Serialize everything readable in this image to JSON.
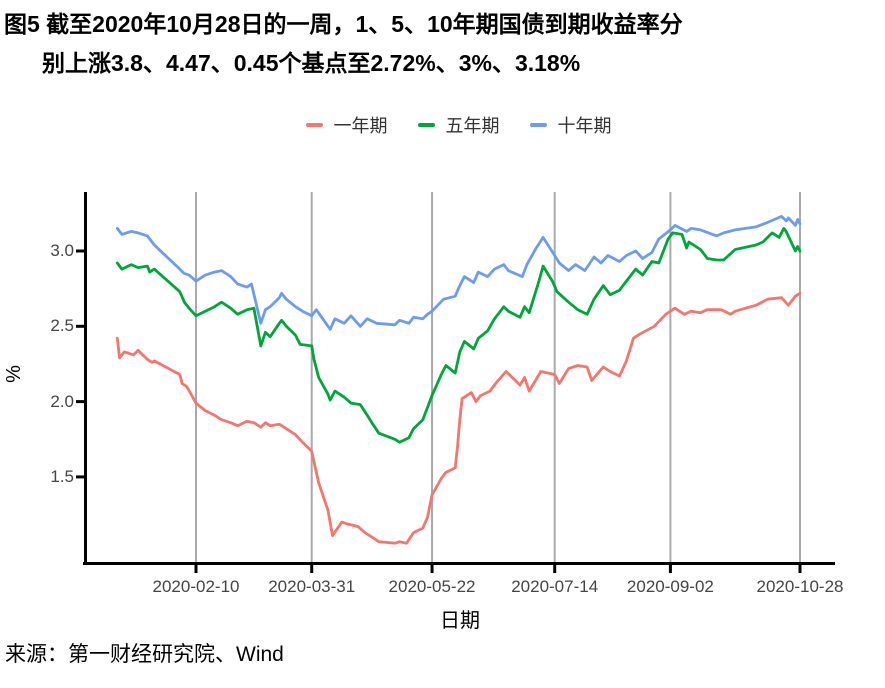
{
  "title": {
    "line1": "图5 截至2020年10月28日的一周，1、5、10年期国债到期收益率分",
    "line2": "别上涨3.8、4.47、0.45个基点至2.72%、3%、3.18%"
  },
  "source": "来源：第一财经研究院、Wind",
  "chart_data": {
    "type": "line",
    "title": "1、5、10年期国债到期收益率",
    "xlabel": "日期",
    "ylabel": "%",
    "x_ticks": [
      "2020-02-10",
      "2020-03-31",
      "2020-05-22",
      "2020-07-14",
      "2020-09-02",
      "2020-10-28"
    ],
    "y_ticks": [
      1.5,
      2.0,
      2.5,
      3.0
    ],
    "ylim": [
      0.93,
      3.39
    ],
    "grid": "vertical-only",
    "grid_color": "#A9A9A9",
    "axis_color": "#000000",
    "tick_label_color": "#454545",
    "legend_position": "top-center",
    "series": [
      {
        "id": "1y",
        "name": "一年期",
        "color": "#F4766E",
        "points": [
          [
            "2020-01-07",
            2.42
          ],
          [
            "2020-01-08",
            2.29
          ],
          [
            "2020-01-10",
            2.33
          ],
          [
            "2020-01-14",
            2.31
          ],
          [
            "2020-01-16",
            2.34
          ],
          [
            "2020-01-20",
            2.28
          ],
          [
            "2020-01-22",
            2.26
          ],
          [
            "2020-01-23",
            2.27
          ],
          [
            "2020-02-03",
            2.18
          ],
          [
            "2020-02-04",
            2.12
          ],
          [
            "2020-02-06",
            2.1
          ],
          [
            "2020-02-10",
            1.99
          ],
          [
            "2020-02-14",
            1.94
          ],
          [
            "2020-02-18",
            1.91
          ],
          [
            "2020-02-21",
            1.88
          ],
          [
            "2020-02-25",
            1.86
          ],
          [
            "2020-02-28",
            1.84
          ],
          [
            "2020-03-03",
            1.87
          ],
          [
            "2020-03-06",
            1.86
          ],
          [
            "2020-03-09",
            1.83
          ],
          [
            "2020-03-11",
            1.86
          ],
          [
            "2020-03-13",
            1.84
          ],
          [
            "2020-03-17",
            1.85
          ],
          [
            "2020-03-20",
            1.82
          ],
          [
            "2020-03-24",
            1.78
          ],
          [
            "2020-03-27",
            1.73
          ],
          [
            "2020-03-31",
            1.67
          ],
          [
            "2020-04-01",
            1.6
          ],
          [
            "2020-04-03",
            1.46
          ],
          [
            "2020-04-07",
            1.28
          ],
          [
            "2020-04-09",
            1.11
          ],
          [
            "2020-04-13",
            1.2
          ],
          [
            "2020-04-15",
            1.19
          ],
          [
            "2020-04-20",
            1.17
          ],
          [
            "2020-04-23",
            1.13
          ],
          [
            "2020-04-26",
            1.1
          ],
          [
            "2020-04-29",
            1.07
          ],
          [
            "2020-05-06",
            1.06
          ],
          [
            "2020-05-08",
            1.07
          ],
          [
            "2020-05-11",
            1.06
          ],
          [
            "2020-05-14",
            1.13
          ],
          [
            "2020-05-18",
            1.16
          ],
          [
            "2020-05-20",
            1.23
          ],
          [
            "2020-05-22",
            1.38
          ],
          [
            "2020-05-26",
            1.49
          ],
          [
            "2020-05-28",
            1.53
          ],
          [
            "2020-06-01",
            1.56
          ],
          [
            "2020-06-02",
            1.7
          ],
          [
            "2020-06-03",
            1.88
          ],
          [
            "2020-06-04",
            2.02
          ],
          [
            "2020-06-08",
            2.06
          ],
          [
            "2020-06-10",
            2.0
          ],
          [
            "2020-06-12",
            2.04
          ],
          [
            "2020-06-16",
            2.07
          ],
          [
            "2020-06-19",
            2.13
          ],
          [
            "2020-06-23",
            2.2
          ],
          [
            "2020-06-29",
            2.11
          ],
          [
            "2020-07-01",
            2.16
          ],
          [
            "2020-07-03",
            2.07
          ],
          [
            "2020-07-08",
            2.2
          ],
          [
            "2020-07-14",
            2.18
          ],
          [
            "2020-07-16",
            2.12
          ],
          [
            "2020-07-20",
            2.22
          ],
          [
            "2020-07-24",
            2.24
          ],
          [
            "2020-07-28",
            2.23
          ],
          [
            "2020-07-30",
            2.14
          ],
          [
            "2020-08-04",
            2.23
          ],
          [
            "2020-08-07",
            2.2
          ],
          [
            "2020-08-11",
            2.17
          ],
          [
            "2020-08-14",
            2.27
          ],
          [
            "2020-08-17",
            2.42
          ],
          [
            "2020-08-20",
            2.45
          ],
          [
            "2020-08-26",
            2.5
          ],
          [
            "2020-08-31",
            2.58
          ],
          [
            "2020-09-02",
            2.6
          ],
          [
            "2020-09-04",
            2.62
          ],
          [
            "2020-09-08",
            2.58
          ],
          [
            "2020-09-11",
            2.6
          ],
          [
            "2020-09-15",
            2.59
          ],
          [
            "2020-09-18",
            2.61
          ],
          [
            "2020-09-24",
            2.61
          ],
          [
            "2020-09-28",
            2.58
          ],
          [
            "2020-09-30",
            2.6
          ],
          [
            "2020-10-09",
            2.64
          ],
          [
            "2020-10-14",
            2.68
          ],
          [
            "2020-10-20",
            2.69
          ],
          [
            "2020-10-23",
            2.64
          ],
          [
            "2020-10-26",
            2.7
          ],
          [
            "2020-10-28",
            2.72
          ]
        ]
      },
      {
        "id": "5y",
        "name": "五年期",
        "color": "#00A63A",
        "points": [
          [
            "2020-01-07",
            2.92
          ],
          [
            "2020-01-09",
            2.88
          ],
          [
            "2020-01-13",
            2.91
          ],
          [
            "2020-01-16",
            2.89
          ],
          [
            "2020-01-20",
            2.9
          ],
          [
            "2020-01-21",
            2.86
          ],
          [
            "2020-01-23",
            2.88
          ],
          [
            "2020-02-03",
            2.73
          ],
          [
            "2020-02-05",
            2.66
          ],
          [
            "2020-02-07",
            2.62
          ],
          [
            "2020-02-10",
            2.57
          ],
          [
            "2020-02-14",
            2.6
          ],
          [
            "2020-02-18",
            2.63
          ],
          [
            "2020-02-21",
            2.66
          ],
          [
            "2020-02-25",
            2.62
          ],
          [
            "2020-02-28",
            2.58
          ],
          [
            "2020-03-03",
            2.61
          ],
          [
            "2020-03-06",
            2.62
          ],
          [
            "2020-03-09",
            2.37
          ],
          [
            "2020-03-11",
            2.46
          ],
          [
            "2020-03-13",
            2.43
          ],
          [
            "2020-03-17",
            2.52
          ],
          [
            "2020-03-18",
            2.54
          ],
          [
            "2020-03-20",
            2.5
          ],
          [
            "2020-03-24",
            2.44
          ],
          [
            "2020-03-26",
            2.38
          ],
          [
            "2020-03-31",
            2.37
          ],
          [
            "2020-04-01",
            2.28
          ],
          [
            "2020-04-03",
            2.16
          ],
          [
            "2020-04-07",
            2.05
          ],
          [
            "2020-04-08",
            2.01
          ],
          [
            "2020-04-10",
            2.07
          ],
          [
            "2020-04-14",
            2.03
          ],
          [
            "2020-04-17",
            1.99
          ],
          [
            "2020-04-21",
            1.98
          ],
          [
            "2020-04-24",
            1.91
          ],
          [
            "2020-04-26",
            1.86
          ],
          [
            "2020-04-29",
            1.79
          ],
          [
            "2020-05-06",
            1.75
          ],
          [
            "2020-05-08",
            1.73
          ],
          [
            "2020-05-12",
            1.76
          ],
          [
            "2020-05-14",
            1.82
          ],
          [
            "2020-05-18",
            1.88
          ],
          [
            "2020-05-20",
            1.96
          ],
          [
            "2020-05-22",
            2.04
          ],
          [
            "2020-05-26",
            2.18
          ],
          [
            "2020-05-28",
            2.24
          ],
          [
            "2020-06-01",
            2.19
          ],
          [
            "2020-06-03",
            2.33
          ],
          [
            "2020-06-05",
            2.4
          ],
          [
            "2020-06-09",
            2.35
          ],
          [
            "2020-06-11",
            2.42
          ],
          [
            "2020-06-15",
            2.47
          ],
          [
            "2020-06-18",
            2.55
          ],
          [
            "2020-06-22",
            2.63
          ],
          [
            "2020-06-24",
            2.6
          ],
          [
            "2020-06-29",
            2.56
          ],
          [
            "2020-07-01",
            2.63
          ],
          [
            "2020-07-03",
            2.59
          ],
          [
            "2020-07-07",
            2.79
          ],
          [
            "2020-07-09",
            2.9
          ],
          [
            "2020-07-13",
            2.8
          ],
          [
            "2020-07-15",
            2.73
          ],
          [
            "2020-07-20",
            2.66
          ],
          [
            "2020-07-24",
            2.61
          ],
          [
            "2020-07-28",
            2.58
          ],
          [
            "2020-07-31",
            2.68
          ],
          [
            "2020-08-04",
            2.77
          ],
          [
            "2020-08-07",
            2.71
          ],
          [
            "2020-08-11",
            2.74
          ],
          [
            "2020-08-14",
            2.8
          ],
          [
            "2020-08-18",
            2.88
          ],
          [
            "2020-08-21",
            2.84
          ],
          [
            "2020-08-25",
            2.93
          ],
          [
            "2020-08-28",
            2.92
          ],
          [
            "2020-09-01",
            3.08
          ],
          [
            "2020-09-03",
            3.12
          ],
          [
            "2020-09-07",
            3.11
          ],
          [
            "2020-09-09",
            3.02
          ],
          [
            "2020-09-10",
            3.06
          ],
          [
            "2020-09-15",
            3.01
          ],
          [
            "2020-09-18",
            2.95
          ],
          [
            "2020-09-22",
            2.94
          ],
          [
            "2020-09-25",
            2.94
          ],
          [
            "2020-09-30",
            3.01
          ],
          [
            "2020-10-09",
            3.04
          ],
          [
            "2020-10-12",
            3.06
          ],
          [
            "2020-10-14",
            3.09
          ],
          [
            "2020-10-16",
            3.12
          ],
          [
            "2020-10-19",
            3.09
          ],
          [
            "2020-10-21",
            3.15
          ],
          [
            "2020-10-22",
            3.13
          ],
          [
            "2020-10-26",
            3.0
          ],
          [
            "2020-10-27",
            3.03
          ],
          [
            "2020-10-28",
            3.0
          ]
        ]
      },
      {
        "id": "10y",
        "name": "十年期",
        "color": "#6C9CEE",
        "points": [
          [
            "2020-01-07",
            3.15
          ],
          [
            "2020-01-09",
            3.11
          ],
          [
            "2020-01-13",
            3.13
          ],
          [
            "2020-01-16",
            3.12
          ],
          [
            "2020-01-20",
            3.1
          ],
          [
            "2020-01-23",
            3.04
          ],
          [
            "2020-02-03",
            2.88
          ],
          [
            "2020-02-05",
            2.85
          ],
          [
            "2020-02-07",
            2.84
          ],
          [
            "2020-02-10",
            2.8
          ],
          [
            "2020-02-14",
            2.84
          ],
          [
            "2020-02-18",
            2.86
          ],
          [
            "2020-02-21",
            2.87
          ],
          [
            "2020-02-25",
            2.83
          ],
          [
            "2020-02-28",
            2.78
          ],
          [
            "2020-03-03",
            2.76
          ],
          [
            "2020-03-05",
            2.78
          ],
          [
            "2020-03-09",
            2.52
          ],
          [
            "2020-03-11",
            2.61
          ],
          [
            "2020-03-13",
            2.63
          ],
          [
            "2020-03-17",
            2.69
          ],
          [
            "2020-03-18",
            2.72
          ],
          [
            "2020-03-20",
            2.68
          ],
          [
            "2020-03-24",
            2.63
          ],
          [
            "2020-03-27",
            2.6
          ],
          [
            "2020-03-31",
            2.57
          ],
          [
            "2020-04-02",
            2.61
          ],
          [
            "2020-04-08",
            2.48
          ],
          [
            "2020-04-10",
            2.55
          ],
          [
            "2020-04-14",
            2.52
          ],
          [
            "2020-04-17",
            2.57
          ],
          [
            "2020-04-21",
            2.5
          ],
          [
            "2020-04-24",
            2.55
          ],
          [
            "2020-04-28",
            2.52
          ],
          [
            "2020-05-06",
            2.51
          ],
          [
            "2020-05-08",
            2.54
          ],
          [
            "2020-05-12",
            2.52
          ],
          [
            "2020-05-14",
            2.56
          ],
          [
            "2020-05-18",
            2.55
          ],
          [
            "2020-05-20",
            2.58
          ],
          [
            "2020-05-22",
            2.6
          ],
          [
            "2020-05-27",
            2.68
          ],
          [
            "2020-06-01",
            2.7
          ],
          [
            "2020-06-03",
            2.77
          ],
          [
            "2020-06-05",
            2.83
          ],
          [
            "2020-06-09",
            2.79
          ],
          [
            "2020-06-11",
            2.86
          ],
          [
            "2020-06-15",
            2.83
          ],
          [
            "2020-06-18",
            2.88
          ],
          [
            "2020-06-22",
            2.91
          ],
          [
            "2020-06-24",
            2.87
          ],
          [
            "2020-06-30",
            2.83
          ],
          [
            "2020-07-02",
            2.91
          ],
          [
            "2020-07-06",
            3.02
          ],
          [
            "2020-07-09",
            3.09
          ],
          [
            "2020-07-14",
            2.97
          ],
          [
            "2020-07-16",
            2.92
          ],
          [
            "2020-07-20",
            2.87
          ],
          [
            "2020-07-23",
            2.91
          ],
          [
            "2020-07-27",
            2.87
          ],
          [
            "2020-07-31",
            2.96
          ],
          [
            "2020-08-03",
            2.92
          ],
          [
            "2020-08-06",
            2.97
          ],
          [
            "2020-08-11",
            2.93
          ],
          [
            "2020-08-14",
            2.97
          ],
          [
            "2020-08-18",
            3.0
          ],
          [
            "2020-08-21",
            2.95
          ],
          [
            "2020-08-25",
            2.99
          ],
          [
            "2020-08-28",
            3.08
          ],
          [
            "2020-09-02",
            3.14
          ],
          [
            "2020-09-04",
            3.17
          ],
          [
            "2020-09-09",
            3.13
          ],
          [
            "2020-09-11",
            3.15
          ],
          [
            "2020-09-15",
            3.14
          ],
          [
            "2020-09-22",
            3.1
          ],
          [
            "2020-09-25",
            3.12
          ],
          [
            "2020-09-30",
            3.14
          ],
          [
            "2020-10-09",
            3.16
          ],
          [
            "2020-10-14",
            3.19
          ],
          [
            "2020-10-20",
            3.23
          ],
          [
            "2020-10-22",
            3.2
          ],
          [
            "2020-10-23",
            3.22
          ],
          [
            "2020-10-26",
            3.17
          ],
          [
            "2020-10-27",
            3.21
          ],
          [
            "2020-10-28",
            3.18
          ]
        ]
      }
    ]
  }
}
